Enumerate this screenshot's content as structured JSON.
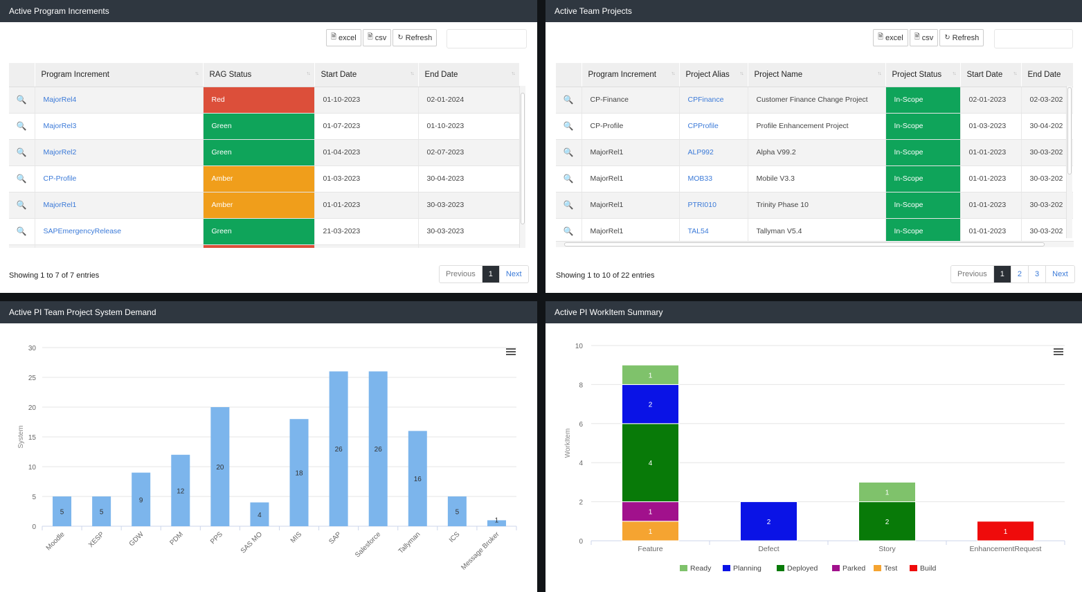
{
  "pi_panel": {
    "title": "Active Program Increments",
    "toolbar": {
      "excel": "excel",
      "csv": "csv",
      "refresh": "Refresh"
    },
    "columns": [
      "Program Increment",
      "RAG Status",
      "Start Date",
      "End Date"
    ],
    "rows": [
      {
        "pi": "MajorRel4",
        "rag": "Red",
        "start": "01-10-2023",
        "end": "02-01-2024"
      },
      {
        "pi": "MajorRel3",
        "rag": "Green",
        "start": "01-07-2023",
        "end": "01-10-2023"
      },
      {
        "pi": "MajorRel2",
        "rag": "Green",
        "start": "01-04-2023",
        "end": "02-07-2023"
      },
      {
        "pi": "CP-Profile",
        "rag": "Amber",
        "start": "01-03-2023",
        "end": "30-04-2023"
      },
      {
        "pi": "MajorRel1",
        "rag": "Amber",
        "start": "01-01-2023",
        "end": "30-03-2023"
      },
      {
        "pi": "SAPEmergencyRelease",
        "rag": "Green",
        "start": "21-03-2023",
        "end": "30-03-2023"
      }
    ],
    "info": "Showing 1 to 7 of 7 entries",
    "pager": {
      "prev": "Previous",
      "page1": "1",
      "next": "Next"
    }
  },
  "team_panel": {
    "title": "Active Team Projects",
    "toolbar": {
      "excel": "excel",
      "csv": "csv",
      "refresh": "Refresh"
    },
    "columns": [
      "Program Increment",
      "Project Alias",
      "Project Name",
      "Project Status",
      "Start Date",
      "End Date"
    ],
    "rows": [
      {
        "pi": "CP-Finance",
        "alias": "CPFinance",
        "name": "Customer Finance Change Project",
        "status": "In-Scope",
        "start": "02-01-2023",
        "end": "02-03-202"
      },
      {
        "pi": "CP-Profile",
        "alias": "CPProfile",
        "name": "Profile Enhancement Project",
        "status": "In-Scope",
        "start": "01-03-2023",
        "end": "30-04-202"
      },
      {
        "pi": "MajorRel1",
        "alias": "ALP992",
        "name": "Alpha V99.2",
        "status": "In-Scope",
        "start": "01-01-2023",
        "end": "30-03-202"
      },
      {
        "pi": "MajorRel1",
        "alias": "MOB33",
        "name": "Mobile V3.3",
        "status": "In-Scope",
        "start": "01-01-2023",
        "end": "30-03-202"
      },
      {
        "pi": "MajorRel1",
        "alias": "PTRI010",
        "name": "Trinity Phase 10",
        "status": "In-Scope",
        "start": "01-01-2023",
        "end": "30-03-202"
      },
      {
        "pi": "MajorRel1",
        "alias": "TAL54",
        "name": "Tallyman V5.4",
        "status": "In-Scope",
        "start": "01-01-2023",
        "end": "30-03-202"
      }
    ],
    "info": "Showing 1 to 10 of 22 entries",
    "pager": {
      "prev": "Previous",
      "page1": "1",
      "page2": "2",
      "page3": "3",
      "next": "Next"
    }
  },
  "demand_panel": {
    "title": "Active PI Team Project System Demand"
  },
  "workitem_panel": {
    "title": "Active PI WorkItem Summary"
  },
  "colors": {
    "red": "#dc4f3a",
    "green": "#0fa45a",
    "amber": "#f09e1b",
    "bar": "#7cb5ec",
    "ready": "#7fc26b",
    "planning": "#0a13e6",
    "deployed": "#087a08",
    "parked": "#a1118c",
    "test": "#f5a431",
    "build": "#ef0b0b"
  },
  "chart_data": [
    {
      "type": "bar",
      "ylabel": "System",
      "ylim": [
        0,
        30
      ],
      "yticks": [
        0,
        5,
        10,
        15,
        20,
        25,
        30
      ],
      "categories": [
        "Moodle",
        "XESP",
        "GDW",
        "PDM",
        "PPS",
        "SAS MO",
        "MIS",
        "SAP",
        "Salesforce",
        "Tallyman",
        "ICS",
        "Message Broker"
      ],
      "values": [
        5,
        5,
        9,
        12,
        20,
        4,
        18,
        26,
        26,
        16,
        5,
        1
      ],
      "grid": true
    },
    {
      "type": "bar",
      "stacked": true,
      "ylabel": "WorkItem",
      "ylim": [
        0,
        10
      ],
      "yticks": [
        0,
        2,
        4,
        6,
        8,
        10
      ],
      "categories": [
        "Feature",
        "Defect",
        "Story",
        "EnhancementRequest"
      ],
      "series": [
        {
          "name": "Ready",
          "values": [
            1,
            0,
            1,
            0
          ]
        },
        {
          "name": "Planning",
          "values": [
            2,
            2,
            0,
            0
          ]
        },
        {
          "name": "Deployed",
          "values": [
            4,
            0,
            2,
            0
          ]
        },
        {
          "name": "Parked",
          "values": [
            1,
            0,
            0,
            0
          ]
        },
        {
          "name": "Test",
          "values": [
            1,
            0,
            0,
            0
          ]
        },
        {
          "name": "Build",
          "values": [
            0,
            0,
            0,
            1
          ]
        }
      ],
      "legend": "bottom",
      "grid": true
    }
  ]
}
